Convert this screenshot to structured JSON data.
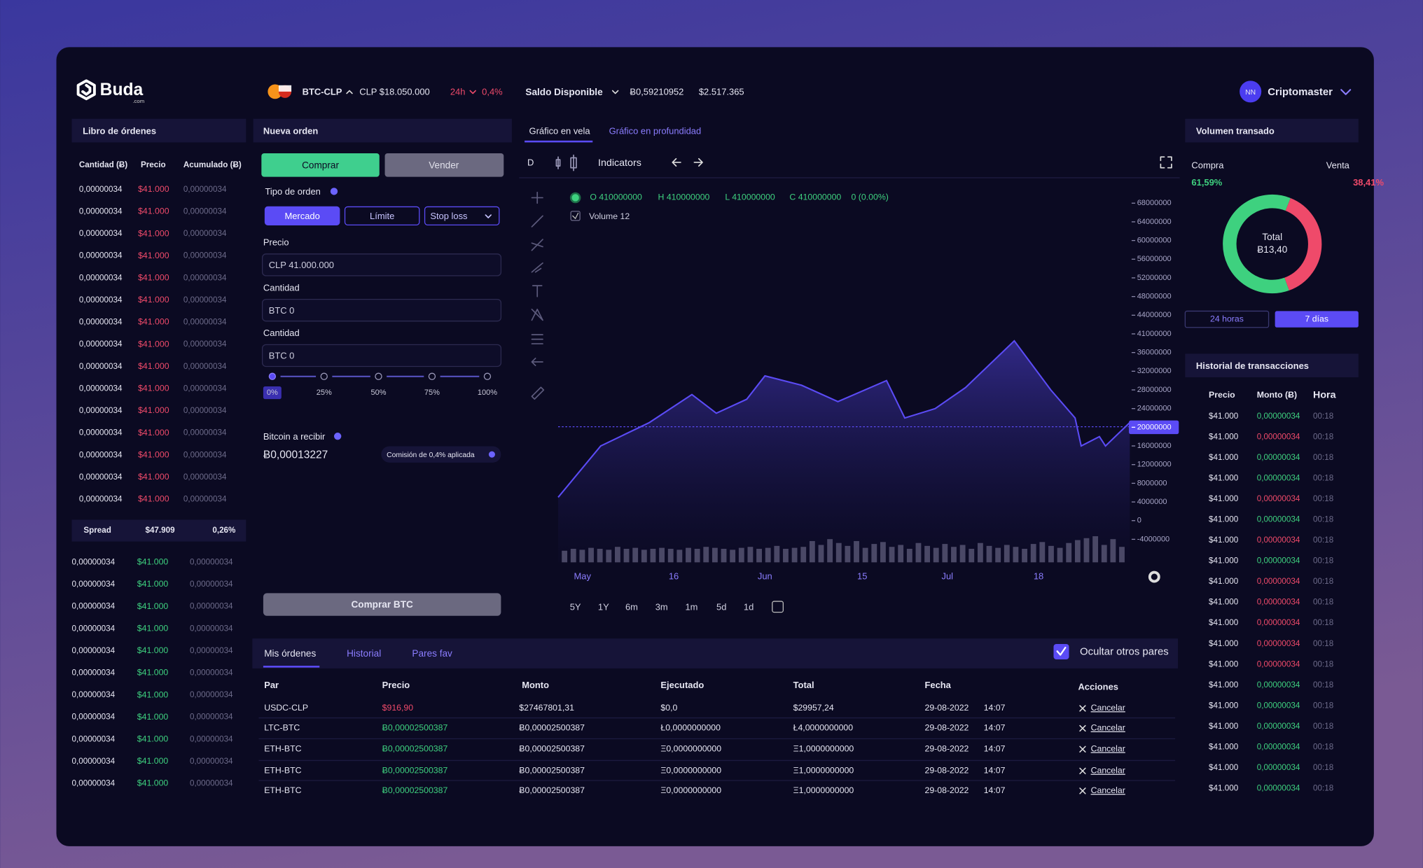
{
  "header": {
    "logo": "Buda",
    "logo_sub": ".com",
    "pair": "BTC-CLP",
    "price": "CLP $18.050.000",
    "change_period": "24h",
    "change": "0,4%",
    "balance_label": "Saldo Disponible",
    "balance_btc": "Ƀ0,59210952",
    "balance_clp": "$2.517.365",
    "user_initials": "NN",
    "user_name": "Criptomaster"
  },
  "order_book": {
    "title": "Libro de órdenes",
    "columns": [
      "Cantidad (Ƀ)",
      "Precio",
      "Acumulado (Ƀ)"
    ],
    "asks": [
      [
        "0,00000034",
        "$41.000",
        "0,00000034"
      ],
      [
        "0,00000034",
        "$41.000",
        "0,00000034"
      ],
      [
        "0,00000034",
        "$41.000",
        "0,00000034"
      ],
      [
        "0,00000034",
        "$41.000",
        "0,00000034"
      ],
      [
        "0,00000034",
        "$41.000",
        "0,00000034"
      ],
      [
        "0,00000034",
        "$41.000",
        "0,00000034"
      ],
      [
        "0,00000034",
        "$41.000",
        "0,00000034"
      ],
      [
        "0,00000034",
        "$41.000",
        "0,00000034"
      ],
      [
        "0,00000034",
        "$41.000",
        "0,00000034"
      ],
      [
        "0,00000034",
        "$41.000",
        "0,00000034"
      ],
      [
        "0,00000034",
        "$41.000",
        "0,00000034"
      ],
      [
        "0,00000034",
        "$41.000",
        "0,00000034"
      ],
      [
        "0,00000034",
        "$41.000",
        "0,00000034"
      ],
      [
        "0,00000034",
        "$41.000",
        "0,00000034"
      ],
      [
        "0,00000034",
        "$41.000",
        "0,00000034"
      ]
    ],
    "spread": [
      "Spread",
      "$47.909",
      "0,26%"
    ],
    "bids": [
      [
        "0,00000034",
        "$41.000",
        "0,00000034"
      ],
      [
        "0,00000034",
        "$41.000",
        "0,00000034"
      ],
      [
        "0,00000034",
        "$41.000",
        "0,00000034"
      ],
      [
        "0,00000034",
        "$41.000",
        "0,00000034"
      ],
      [
        "0,00000034",
        "$41.000",
        "0,00000034"
      ],
      [
        "0,00000034",
        "$41.000",
        "0,00000034"
      ],
      [
        "0,00000034",
        "$41.000",
        "0,00000034"
      ],
      [
        "0,00000034",
        "$41.000",
        "0,00000034"
      ],
      [
        "0,00000034",
        "$41.000",
        "0,00000034"
      ],
      [
        "0,00000034",
        "$41.000",
        "0,00000034"
      ],
      [
        "0,00000034",
        "$41.000",
        "0,00000034"
      ]
    ]
  },
  "new_order": {
    "title": "Nueva orden",
    "buy": "Comprar",
    "sell": "Vender",
    "order_type_label": "Tipo de orden",
    "types": [
      "Mercado",
      "Límite",
      "Stop loss"
    ],
    "price_label": "Precio",
    "price_value": "CLP 41.000.000",
    "qty_label": "Cantidad",
    "qty_value": "BTC 0",
    "qty2_label": "Cantidad",
    "qty2_value": "BTC 0",
    "slider": [
      "0%",
      "25%",
      "50%",
      "75%",
      "100%"
    ],
    "receive_label": "Bitcoin a recibir",
    "receive_value": "Ƀ0,00013227",
    "fee": "Comisión de 0,4% aplicada",
    "submit": "Comprar BTC"
  },
  "chart": {
    "tabs": [
      "Gráfico en vela",
      "Gráfico en profundidad"
    ],
    "interval": "D",
    "indicators": "Indicators",
    "ohlc": [
      "O 410000000",
      "H 410000000",
      "L 410000000",
      "C 410000000",
      "0 (0.00%)"
    ],
    "volume_label": "Volume 12",
    "y_labels": [
      "68000000",
      "64000000",
      "60000000",
      "56000000",
      "52000000",
      "48000000",
      "44000000",
      "41000000",
      "36000000",
      "32000000",
      "28000000",
      "24000000",
      "20000000",
      "16000000",
      "12000000",
      "8000000",
      "4000000",
      "0",
      "-4000000"
    ],
    "ylim": [
      -4000000,
      68000000
    ],
    "xlim": [
      -4,
      90
    ],
    "xticks": [
      {
        "value": 0,
        "label": "May"
      },
      {
        "value": 15,
        "label": "16"
      },
      {
        "value": 30,
        "label": "Jun"
      },
      {
        "value": 46,
        "label": "15"
      },
      {
        "value": 60,
        "label": "Jul"
      },
      {
        "value": 75,
        "label": "18"
      }
    ],
    "price": {
      "color": "#5b4bf5",
      "x": [
        -4,
        3,
        11,
        18,
        22,
        27,
        30,
        36,
        42,
        50,
        53,
        58,
        63,
        71,
        77,
        81,
        82,
        85,
        86,
        90
      ],
      "values": [
        5000000,
        16000000,
        21000000,
        27000000,
        23000000,
        26000000,
        31000000,
        29000000,
        25500000,
        30000000,
        22000000,
        24000000,
        28500000,
        38500000,
        28000000,
        22000000,
        16000000,
        18000000,
        16000000,
        21000000
      ]
    },
    "volume": {
      "vlim": [
        0,
        30
      ],
      "values": [
        12,
        14,
        13,
        15,
        14,
        13,
        16,
        14,
        15,
        13,
        14,
        15,
        14,
        13,
        15,
        14,
        16,
        15,
        14,
        13,
        15,
        16,
        14,
        15,
        17,
        14,
        15,
        16,
        22,
        18,
        24,
        20,
        17,
        22,
        15,
        19,
        21,
        16,
        18,
        14,
        20,
        17,
        15,
        19,
        16,
        18,
        14,
        20,
        17,
        15,
        18,
        16,
        14,
        19,
        21,
        17,
        15,
        20,
        23,
        25,
        27,
        18,
        24,
        16
      ]
    },
    "ranges": [
      "5Y",
      "1Y",
      "6m",
      "3m",
      "1m",
      "5d",
      "1d"
    ]
  },
  "volume": {
    "title": "Volumen transado",
    "labels": [
      "Compra",
      "Venta"
    ],
    "values": [
      61.59,
      38.41
    ],
    "value_labels": [
      "61,59%",
      "38,41%"
    ],
    "colors": [
      "#3ed17f",
      "#ef4a6a"
    ],
    "total_label": "Total",
    "total_value": "Ƀ13,40",
    "periods": [
      "24 horas",
      "7 días"
    ]
  },
  "transactions": {
    "title": "Historial de transacciones",
    "columns": [
      "Precio",
      "Monto (Ƀ)",
      "Hora"
    ],
    "rows": [
      [
        "$41.000",
        "0,00000034",
        "00:18"
      ],
      [
        "$41.000",
        "0,00000034",
        "00:18"
      ],
      [
        "$41.000",
        "0,00000034",
        "00:18"
      ],
      [
        "$41.000",
        "0,00000034",
        "00:18"
      ],
      [
        "$41.000",
        "0,00000034",
        "00:18"
      ],
      [
        "$41.000",
        "0,00000034",
        "00:18"
      ],
      [
        "$41.000",
        "0,00000034",
        "00:18"
      ],
      [
        "$41.000",
        "0,00000034",
        "00:18"
      ],
      [
        "$41.000",
        "0,00000034",
        "00:18"
      ],
      [
        "$41.000",
        "0,00000034",
        "00:18"
      ],
      [
        "$41.000",
        "0,00000034",
        "00:18"
      ],
      [
        "$41.000",
        "0,00000034",
        "00:18"
      ],
      [
        "$41.000",
        "0,00000034",
        "00:18"
      ],
      [
        "$41.000",
        "0,00000034",
        "00:18"
      ],
      [
        "$41.000",
        "0,00000034",
        "00:18"
      ],
      [
        "$41.000",
        "0,00000034",
        "00:18"
      ],
      [
        "$41.000",
        "0,00000034",
        "00:18"
      ],
      [
        "$41.000",
        "0,00000034",
        "00:18"
      ],
      [
        "$41.000",
        "0,00000034",
        "00:18"
      ]
    ],
    "amount_colors": [
      "#3ed17f",
      "#ef4a6a",
      "#3ed17f",
      "#3ed17f",
      "#ef4a6a",
      "#3ed17f",
      "#ef4a6a",
      "#3ed17f",
      "#ef4a6a",
      "#ef4a6a",
      "#ef4a6a",
      "#ef4a6a",
      "#ef4a6a",
      "#3ed17f",
      "#3ed17f",
      "#3ed17f",
      "#3ed17f",
      "#3ed17f",
      "#3ed17f"
    ]
  },
  "orders": {
    "tabs": [
      "Mis órdenes",
      "Historial",
      "Pares fav"
    ],
    "hide_others": "Ocultar otros pares",
    "columns": [
      "Par",
      "Precio",
      "Monto",
      "Ejecutado",
      "Total",
      "Fecha",
      "Acciones"
    ],
    "rows": [
      [
        "USDC-CLP",
        "$916,90",
        "$27467801,31",
        "$0,0",
        "$29957,24",
        "29-08-2022",
        "14:07",
        "Cancelar"
      ],
      [
        "LTC-BTC",
        "Ƀ0,00002500387",
        "Ƀ0,00002500387",
        "Ł0,0000000000",
        "Ł4,0000000000",
        "29-08-2022",
        "14:07",
        "Cancelar"
      ],
      [
        "ETH-BTC",
        "Ƀ0,00002500387",
        "Ƀ0,00002500387",
        "Ξ0,0000000000",
        "Ξ1,0000000000",
        "29-08-2022",
        "14:07",
        "Cancelar"
      ],
      [
        "ETH-BTC",
        "Ƀ0,00002500387",
        "Ƀ0,00002500387",
        "Ξ0,0000000000",
        "Ξ1,0000000000",
        "29-08-2022",
        "14:07",
        "Cancelar"
      ],
      [
        "ETH-BTC",
        "Ƀ0,00002500387",
        "Ƀ0,00002500387",
        "Ξ0,0000000000",
        "Ξ1,0000000000",
        "29-08-2022",
        "14:07",
        "Cancelar"
      ]
    ],
    "price_colors": [
      "#ef4a6a",
      "#3ed17f",
      "#3ed17f",
      "#3ed17f",
      "#3ed17f"
    ]
  }
}
